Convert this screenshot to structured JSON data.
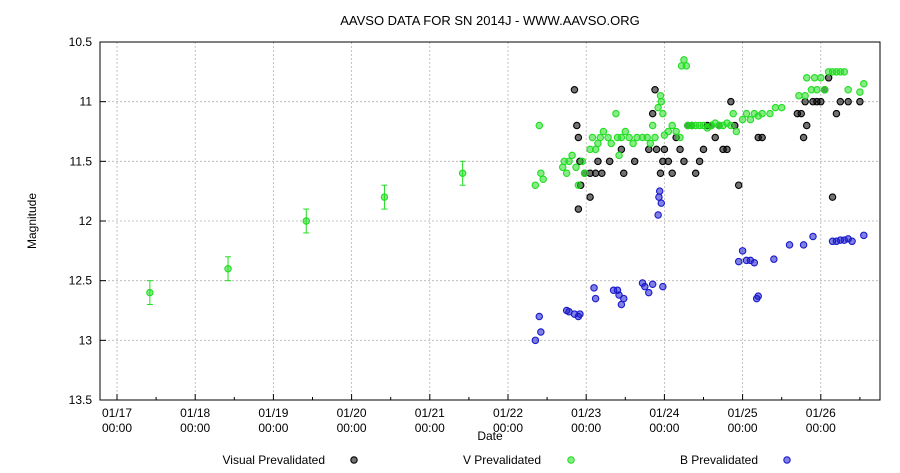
{
  "chart_data": {
    "type": "scatter",
    "title": "AAVSO DATA FOR SN 2014J - WWW.AAVSO.ORG",
    "xlabel": "Date",
    "ylabel": "Magnitude",
    "xlim": [
      0,
      9.75
    ],
    "ylim": [
      13.5,
      10.5
    ],
    "y_inverted": true,
    "grid": true,
    "legend_position": "bottom",
    "x_ticks": [
      {
        "value": 0,
        "label": "01/17",
        "sublabel": "00:00"
      },
      {
        "value": 1,
        "label": "01/18",
        "sublabel": "00:00"
      },
      {
        "value": 2,
        "label": "01/19",
        "sublabel": "00:00"
      },
      {
        "value": 3,
        "label": "01/20",
        "sublabel": "00:00"
      },
      {
        "value": 4,
        "label": "01/21",
        "sublabel": "00:00"
      },
      {
        "value": 5,
        "label": "01/22",
        "sublabel": "00:00"
      },
      {
        "value": 6,
        "label": "01/23",
        "sublabel": "00:00"
      },
      {
        "value": 7,
        "label": "01/24",
        "sublabel": "00:00"
      },
      {
        "value": 8,
        "label": "01/25",
        "sublabel": "00:00"
      },
      {
        "value": 9,
        "label": "01/26",
        "sublabel": "00:00"
      }
    ],
    "y_ticks": [
      {
        "value": 10.5,
        "label": "10.5"
      },
      {
        "value": 11,
        "label": "11"
      },
      {
        "value": 11.5,
        "label": "11.5"
      },
      {
        "value": 12,
        "label": "12"
      },
      {
        "value": 12.5,
        "label": "12.5"
      },
      {
        "value": 13,
        "label": "13"
      },
      {
        "value": 13.5,
        "label": "13.5"
      }
    ],
    "series": [
      {
        "name": "Visual Prevalidated",
        "color": "#000000",
        "points": [
          [
            5.85,
            10.9
          ],
          [
            5.88,
            11.2
          ],
          [
            5.9,
            11.3
          ],
          [
            5.92,
            11.5
          ],
          [
            5.9,
            11.9
          ],
          [
            5.93,
            11.7
          ],
          [
            5.98,
            11.6
          ],
          [
            6.05,
            11.8
          ],
          [
            6.05,
            11.6
          ],
          [
            6.12,
            11.6
          ],
          [
            6.15,
            11.5
          ],
          [
            6.2,
            11.6
          ],
          [
            6.3,
            11.5
          ],
          [
            6.45,
            11.4
          ],
          [
            6.48,
            11.6
          ],
          [
            6.62,
            11.5
          ],
          [
            6.8,
            11.4
          ],
          [
            6.85,
            11.1
          ],
          [
            6.88,
            10.9
          ],
          [
            6.9,
            11.4
          ],
          [
            6.95,
            11.6
          ],
          [
            6.98,
            11.5
          ],
          [
            7.0,
            11.4
          ],
          [
            7.05,
            11.5
          ],
          [
            7.1,
            11.6
          ],
          [
            7.15,
            11.3
          ],
          [
            7.2,
            11.4
          ],
          [
            7.25,
            11.5
          ],
          [
            7.3,
            11.2
          ],
          [
            7.35,
            11.2
          ],
          [
            7.4,
            11.6
          ],
          [
            7.45,
            11.5
          ],
          [
            7.5,
            11.4
          ],
          [
            7.55,
            11.2
          ],
          [
            7.6,
            11.2
          ],
          [
            7.65,
            11.3
          ],
          [
            7.7,
            11.2
          ],
          [
            7.75,
            11.4
          ],
          [
            7.8,
            11.4
          ],
          [
            7.85,
            11.0
          ],
          [
            7.9,
            11.2
          ],
          [
            7.95,
            11.7
          ],
          [
            8.2,
            11.3
          ],
          [
            8.25,
            11.3
          ],
          [
            8.7,
            11.1
          ],
          [
            8.75,
            11.1
          ],
          [
            8.78,
            11.3
          ],
          [
            8.8,
            11.0
          ],
          [
            8.82,
            11.2
          ],
          [
            8.9,
            11.0
          ],
          [
            8.95,
            11.0
          ],
          [
            9.0,
            11.0
          ],
          [
            9.05,
            10.9
          ],
          [
            9.1,
            10.8
          ],
          [
            9.15,
            11.8
          ],
          [
            9.2,
            11.1
          ],
          [
            9.25,
            11.0
          ],
          [
            9.35,
            11.0
          ],
          [
            9.5,
            11.0
          ]
        ]
      },
      {
        "name": "V Prevalidated",
        "color": "#22dd22",
        "points": [
          [
            0.42,
            12.6
          ],
          [
            1.42,
            12.4
          ],
          [
            2.42,
            12.0
          ],
          [
            3.42,
            11.8
          ],
          [
            4.42,
            11.6
          ],
          [
            5.35,
            11.7
          ],
          [
            5.4,
            11.2
          ],
          [
            5.42,
            11.6
          ],
          [
            5.45,
            11.65
          ],
          [
            5.7,
            11.55
          ],
          [
            5.72,
            11.5
          ],
          [
            5.75,
            11.6
          ],
          [
            5.78,
            11.5
          ],
          [
            5.82,
            11.45
          ],
          [
            5.87,
            11.55
          ],
          [
            5.9,
            11.7
          ],
          [
            5.95,
            11.5
          ],
          [
            5.98,
            11.6
          ],
          [
            6.05,
            11.4
          ],
          [
            6.08,
            11.3
          ],
          [
            6.12,
            11.4
          ],
          [
            6.15,
            11.35
          ],
          [
            6.18,
            11.3
          ],
          [
            6.22,
            11.25
          ],
          [
            6.28,
            11.3
          ],
          [
            6.32,
            11.35
          ],
          [
            6.38,
            11.1
          ],
          [
            6.4,
            11.3
          ],
          [
            6.42,
            11.45
          ],
          [
            6.45,
            11.3
          ],
          [
            6.5,
            11.25
          ],
          [
            6.55,
            11.3
          ],
          [
            6.6,
            11.35
          ],
          [
            6.65,
            11.3
          ],
          [
            6.72,
            11.3
          ],
          [
            6.78,
            11.3
          ],
          [
            6.82,
            11.35
          ],
          [
            6.85,
            11.2
          ],
          [
            6.88,
            11.3
          ],
          [
            6.92,
            11.05
          ],
          [
            6.95,
            10.95
          ],
          [
            6.96,
            11.0
          ],
          [
            6.98,
            11.1
          ],
          [
            7.0,
            11.28
          ],
          [
            7.05,
            11.25
          ],
          [
            7.1,
            11.2
          ],
          [
            7.15,
            11.25
          ],
          [
            7.2,
            11.3
          ],
          [
            7.22,
            10.7
          ],
          [
            7.25,
            10.65
          ],
          [
            7.28,
            10.7
          ],
          [
            7.3,
            11.2
          ],
          [
            7.35,
            11.2
          ],
          [
            7.4,
            11.2
          ],
          [
            7.45,
            11.2
          ],
          [
            7.5,
            11.2
          ],
          [
            7.55,
            11.22
          ],
          [
            7.6,
            11.2
          ],
          [
            7.65,
            11.18
          ],
          [
            7.7,
            11.2
          ],
          [
            7.75,
            11.2
          ],
          [
            7.8,
            11.18
          ],
          [
            7.85,
            11.2
          ],
          [
            7.88,
            11.1
          ],
          [
            7.92,
            11.25
          ],
          [
            8.0,
            11.15
          ],
          [
            8.05,
            11.1
          ],
          [
            8.1,
            11.15
          ],
          [
            8.15,
            11.1
          ],
          [
            8.2,
            11.12
          ],
          [
            8.25,
            11.1
          ],
          [
            8.35,
            11.1
          ],
          [
            8.42,
            11.05
          ],
          [
            8.5,
            11.05
          ],
          [
            8.72,
            10.95
          ],
          [
            8.8,
            10.95
          ],
          [
            8.82,
            10.8
          ],
          [
            8.88,
            10.9
          ],
          [
            8.92,
            10.8
          ],
          [
            8.95,
            10.9
          ],
          [
            9.0,
            10.8
          ],
          [
            9.05,
            10.9
          ],
          [
            9.1,
            10.75
          ],
          [
            9.15,
            10.75
          ],
          [
            9.2,
            10.75
          ],
          [
            9.25,
            10.75
          ],
          [
            9.3,
            10.75
          ],
          [
            9.35,
            10.9
          ],
          [
            9.5,
            10.92
          ],
          [
            9.55,
            10.85
          ]
        ]
      },
      {
        "name": "B Prevalidated",
        "color": "#1a1acc",
        "points": [
          [
            5.35,
            13.0
          ],
          [
            5.4,
            12.8
          ],
          [
            5.42,
            12.93
          ],
          [
            5.75,
            12.75
          ],
          [
            5.78,
            12.76
          ],
          [
            5.85,
            12.78
          ],
          [
            5.9,
            12.8
          ],
          [
            5.92,
            12.78
          ],
          [
            6.1,
            12.56
          ],
          [
            6.12,
            12.65
          ],
          [
            6.35,
            12.58
          ],
          [
            6.4,
            12.58
          ],
          [
            6.42,
            12.62
          ],
          [
            6.45,
            12.7
          ],
          [
            6.48,
            12.65
          ],
          [
            6.72,
            12.52
          ],
          [
            6.75,
            12.55
          ],
          [
            6.8,
            12.6
          ],
          [
            6.85,
            12.53
          ],
          [
            6.92,
            11.95
          ],
          [
            6.93,
            11.8
          ],
          [
            6.94,
            11.75
          ],
          [
            6.96,
            11.85
          ],
          [
            6.98,
            12.55
          ],
          [
            7.95,
            12.34
          ],
          [
            8.0,
            12.25
          ],
          [
            8.05,
            12.33
          ],
          [
            8.1,
            12.33
          ],
          [
            8.15,
            12.35
          ],
          [
            8.18,
            12.65
          ],
          [
            8.2,
            12.63
          ],
          [
            8.4,
            12.32
          ],
          [
            8.6,
            12.2
          ],
          [
            8.78,
            12.2
          ],
          [
            8.9,
            12.13
          ],
          [
            9.15,
            12.17
          ],
          [
            9.2,
            12.17
          ],
          [
            9.25,
            12.16
          ],
          [
            9.3,
            12.16
          ],
          [
            9.35,
            12.15
          ],
          [
            9.4,
            12.17
          ],
          [
            9.55,
            12.12
          ]
        ]
      }
    ]
  }
}
